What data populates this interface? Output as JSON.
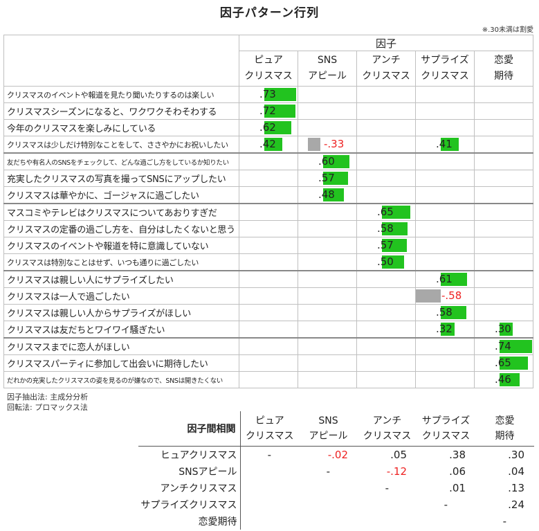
{
  "title": "因子パターン行列",
  "note": "※.30未満は割愛",
  "factor_header": "因子",
  "factors": [
    {
      "l1": "ピュア",
      "l2": "クリスマス"
    },
    {
      "l1": "SNS",
      "l2": "アピール"
    },
    {
      "l1": "アンチ",
      "l2": "クリスマス"
    },
    {
      "l1": "サプライズ",
      "l2": "クリスマス"
    },
    {
      "l1": "恋愛",
      "l2": "期待"
    }
  ],
  "chart_data": {
    "type": "table",
    "title": "因子パターン行列",
    "rows": [
      {
        "item": "クリスマスのイベントや報道を見たり聞いたりするのは楽しい",
        "size": "small",
        "loadings": [
          0.73,
          null,
          null,
          null,
          null
        ],
        "labels": [
          ".73",
          "",
          "",
          "",
          ""
        ]
      },
      {
        "item": "クリスマスシーズンになると、ワクワクそわそわする",
        "size": "normal",
        "loadings": [
          0.72,
          null,
          null,
          null,
          null
        ],
        "labels": [
          ".72",
          "",
          "",
          "",
          ""
        ]
      },
      {
        "item": "今年のクリスマスを楽しみにしている",
        "size": "normal",
        "loadings": [
          0.62,
          null,
          null,
          null,
          null
        ],
        "labels": [
          ".62",
          "",
          "",
          "",
          ""
        ]
      },
      {
        "item": "クリスマスは少しだけ特別なことをして、ささやかにお祝いしたい",
        "size": "small",
        "loadings": [
          0.42,
          -0.33,
          null,
          0.41,
          null
        ],
        "labels": [
          ".42",
          "-.33",
          "",
          ".41",
          ""
        ],
        "group_end": true
      },
      {
        "item": "友だちや有名人のSNSをチェックして、どんな過ごし方をしているか知りたい",
        "size": "tiny",
        "loadings": [
          null,
          0.6,
          null,
          null,
          null
        ],
        "labels": [
          "",
          ".60",
          "",
          "",
          ""
        ]
      },
      {
        "item": "充実したクリスマスの写真を撮ってSNSにアップしたい",
        "size": "normal",
        "loadings": [
          null,
          0.57,
          null,
          null,
          null
        ],
        "labels": [
          "",
          ".57",
          "",
          "",
          ""
        ]
      },
      {
        "item": "クリスマスは華やかに、ゴージャスに過ごしたい",
        "size": "normal",
        "loadings": [
          null,
          0.48,
          null,
          null,
          null
        ],
        "labels": [
          "",
          ".48",
          "",
          "",
          ""
        ],
        "group_end": true
      },
      {
        "item": "マスコミやテレビはクリスマスについてあおりすぎだ",
        "size": "normal",
        "loadings": [
          null,
          null,
          0.65,
          null,
          null
        ],
        "labels": [
          "",
          "",
          ".65",
          "",
          ""
        ]
      },
      {
        "item": "クリスマスの定番の過ごし方を、自分はしたくないと思う",
        "size": "normal",
        "loadings": [
          null,
          null,
          0.58,
          null,
          null
        ],
        "labels": [
          "",
          "",
          ".58",
          "",
          ""
        ]
      },
      {
        "item": "クリスマスのイベントや報道を特に意識していない",
        "size": "normal",
        "loadings": [
          null,
          null,
          0.57,
          null,
          null
        ],
        "labels": [
          "",
          "",
          ".57",
          "",
          ""
        ]
      },
      {
        "item": "クリスマスは特別なことはせず、いつも通りに過ごしたい",
        "size": "small",
        "loadings": [
          null,
          null,
          0.5,
          null,
          null
        ],
        "labels": [
          "",
          "",
          ".50",
          "",
          ""
        ],
        "group_end": true
      },
      {
        "item": "クリスマスは親しい人にサプライズしたい",
        "size": "normal",
        "loadings": [
          null,
          null,
          null,
          0.61,
          null
        ],
        "labels": [
          "",
          "",
          "",
          ".61",
          ""
        ]
      },
      {
        "item": "クリスマスは一人で過ごしたい",
        "size": "normal",
        "loadings": [
          null,
          null,
          null,
          -0.58,
          null
        ],
        "labels": [
          "",
          "",
          "",
          "-.58",
          ""
        ]
      },
      {
        "item": "クリスマスは親しい人からサプライズがほしい",
        "size": "normal",
        "loadings": [
          null,
          null,
          null,
          0.58,
          null
        ],
        "labels": [
          "",
          "",
          "",
          ".58",
          ""
        ]
      },
      {
        "item": "クリスマスは友だちとワイワイ騒ぎたい",
        "size": "normal",
        "loadings": [
          null,
          null,
          null,
          0.32,
          0.3
        ],
        "labels": [
          "",
          "",
          "",
          ".32",
          ".30"
        ],
        "group_end": true
      },
      {
        "item": "クリスマスまでに恋人がほしい",
        "size": "normal",
        "loadings": [
          null,
          null,
          null,
          null,
          0.74
        ],
        "labels": [
          "",
          "",
          "",
          "",
          ".74"
        ]
      },
      {
        "item": "クリスマスパーティに参加して出会いに期待したい",
        "size": "normal",
        "loadings": [
          null,
          null,
          null,
          null,
          0.65
        ],
        "labels": [
          "",
          "",
          "",
          "",
          ".65"
        ]
      },
      {
        "item": "だれかの充実したクリスマスの姿を見るのが嫌なので、SNSは開きたくない",
        "size": "tiny",
        "loadings": [
          null,
          null,
          null,
          null,
          0.46
        ],
        "labels": [
          "",
          "",
          "",
          "",
          ".46"
        ]
      }
    ],
    "colors": {
      "positive": "#22c31f",
      "negative": "#a8a8a8",
      "negative_text": "#e22222"
    }
  },
  "methods": {
    "extraction": "因子抽出法: 主成分分析",
    "rotation": "回転法: プロマックス法"
  },
  "correlation": {
    "title": "因子間相関",
    "row_labels": [
      "ヒュアクリスマス",
      "SNSアピール",
      "アンチクリスマス",
      "サプライズクリスマス",
      "恋愛期待"
    ],
    "matrix": [
      [
        "-",
        "-.02",
        ".05",
        ".38",
        ".30"
      ],
      [
        "",
        "-",
        "-.12",
        ".06",
        ".04"
      ],
      [
        "",
        "",
        "-",
        ".01",
        ".13"
      ],
      [
        "",
        "",
        "",
        "-",
        ".24"
      ],
      [
        "",
        "",
        "",
        "",
        "-"
      ]
    ]
  }
}
